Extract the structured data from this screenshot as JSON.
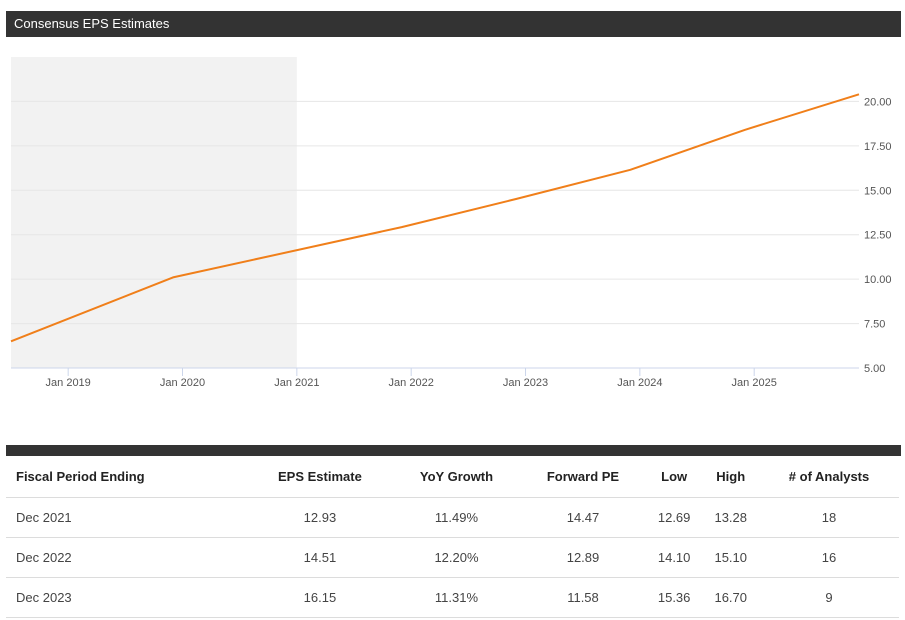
{
  "header": {
    "title": "Consensus EPS Estimates"
  },
  "chart_data": {
    "type": "line",
    "title": "",
    "xlabel": "",
    "ylabel": "",
    "x_ticks": [
      "Jan 2019",
      "Jan 2020",
      "Jan 2021",
      "Jan 2022",
      "Jan 2023",
      "Jan 2024",
      "Jan 2025"
    ],
    "y_ticks": [
      "5.00",
      "7.50",
      "10.00",
      "12.50",
      "15.00",
      "17.50",
      "20.00"
    ],
    "ylim": [
      5,
      22.5
    ],
    "xlim": [
      "2018-07",
      "2025-12"
    ],
    "grid": true,
    "y_axis_side": "right",
    "shaded_region": {
      "from": "2018-07",
      "to": "2021-01",
      "color": "#f2f2f2"
    },
    "series": [
      {
        "color": "#f07f1a",
        "points": [
          {
            "x": "2018-07",
            "y": 6.5
          },
          {
            "x": "2019-12",
            "y": 10.1
          },
          {
            "x": "2021-12",
            "y": 12.93
          },
          {
            "x": "2022-12",
            "y": 14.51
          },
          {
            "x": "2023-12",
            "y": 16.15
          },
          {
            "x": "2024-12",
            "y": 18.4
          },
          {
            "x": "2025-12",
            "y": 20.4
          }
        ]
      }
    ]
  },
  "table": {
    "headers": [
      "Fiscal Period Ending",
      "EPS Estimate",
      "YoY Growth",
      "Forward PE",
      "Low",
      "High",
      "# of Analysts"
    ],
    "rows": [
      [
        "Dec 2021",
        "12.93",
        "11.49%",
        "14.47",
        "12.69",
        "13.28",
        "18"
      ],
      [
        "Dec 2022",
        "14.51",
        "12.20%",
        "12.89",
        "14.10",
        "15.10",
        "16"
      ],
      [
        "Dec 2023",
        "16.15",
        "11.31%",
        "11.58",
        "15.36",
        "16.70",
        "9"
      ]
    ]
  }
}
